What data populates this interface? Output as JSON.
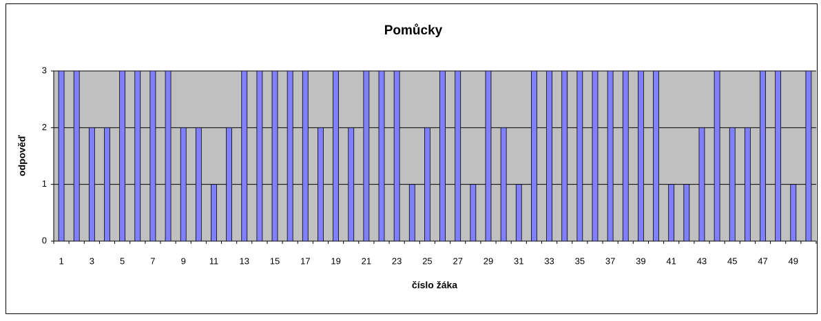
{
  "chart_data": {
    "type": "bar",
    "title": "Pomůcky",
    "x_label": "číslo žáka",
    "y_label": "odpověď",
    "categories": [
      "1",
      null,
      "3",
      null,
      "5",
      null,
      "7",
      null,
      "9",
      null,
      "11",
      null,
      "13",
      null,
      "15",
      null,
      "17",
      null,
      "19",
      null,
      "21",
      null,
      "23",
      null,
      "25",
      null,
      "27",
      null,
      "29",
      null,
      "31",
      null,
      "33",
      null,
      "35",
      null,
      "37",
      null,
      "39",
      null,
      "41",
      null,
      "43",
      null,
      "45",
      null,
      "47",
      null,
      "49",
      null
    ],
    "values": [
      3,
      3,
      2,
      2,
      3,
      3,
      3,
      3,
      2,
      2,
      1,
      2,
      3,
      3,
      3,
      3,
      3,
      2,
      3,
      2,
      3,
      3,
      3,
      1,
      2,
      3,
      3,
      1,
      3,
      2,
      1,
      3,
      3,
      3,
      3,
      3,
      3,
      3,
      3,
      3,
      1,
      1,
      2,
      3,
      2,
      2,
      3,
      3,
      1,
      3
    ],
    "color": "#8080ff",
    "ylim": [
      0,
      3
    ],
    "yticks": [
      0,
      1,
      2,
      3
    ],
    "grid": true
  }
}
